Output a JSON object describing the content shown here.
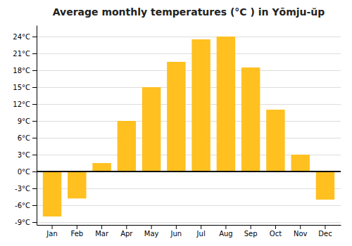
{
  "chart_data": {
    "type": "bar",
    "title": "Average monthly temperatures (°C ) in Yōmju-ŭp",
    "categories": [
      "Jan",
      "Feb",
      "Mar",
      "Apr",
      "May",
      "Jun",
      "Jul",
      "Aug",
      "Sep",
      "Oct",
      "Nov",
      "Dec"
    ],
    "values": [
      -8.0,
      -4.8,
      1.5,
      9.0,
      15.0,
      19.5,
      23.5,
      24.0,
      18.5,
      11.0,
      3.0,
      -5.0
    ],
    "color": "#FFC020",
    "ylim": [
      -9.5,
      26.0
    ],
    "yticks": [
      {
        "value": -9,
        "label": "-9°C"
      },
      {
        "value": -6,
        "label": "-6°C"
      },
      {
        "value": -3,
        "label": "-3°C"
      },
      {
        "value": 0,
        "label": "0°C"
      },
      {
        "value": 3,
        "label": "3°C"
      },
      {
        "value": 6,
        "label": "6°C"
      },
      {
        "value": 9,
        "label": "9°C"
      },
      {
        "value": 12,
        "label": "12°C"
      },
      {
        "value": 15,
        "label": "15°C"
      },
      {
        "value": 18,
        "label": "18°C"
      },
      {
        "value": 21,
        "label": "21°C"
      },
      {
        "value": 24,
        "label": "24°C"
      }
    ],
    "grid": true
  }
}
